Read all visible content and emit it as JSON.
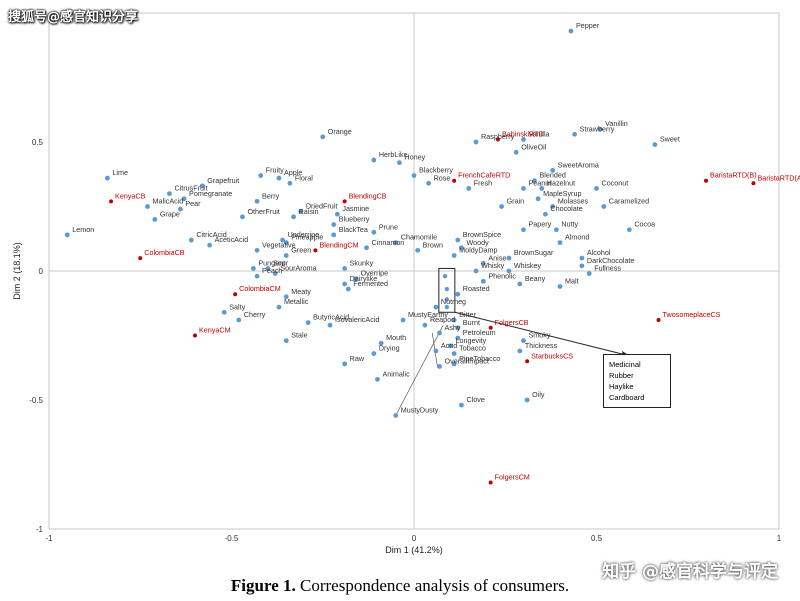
{
  "watermarks": {
    "top": "搜狐号@感官知识分享",
    "bottom": "知乎 @感官科学与评定"
  },
  "caption": {
    "label": "Figure 1.",
    "text": "Correspondence analysis of consumers."
  },
  "box_terms": [
    "Medicinal",
    "Rubber",
    "Haylike",
    "Cardboard"
  ],
  "chart_data": {
    "type": "scatter",
    "xlabel": "Dim 1 (41.2%)",
    "ylabel": "Dim 2 (18.1%)",
    "xlim": [
      -1,
      1
    ],
    "ylim": [
      -1,
      1
    ],
    "xticks": [
      -1,
      -0.5,
      0,
      0.5,
      1
    ],
    "yticks": [
      -1,
      -0.5,
      0,
      0.5
    ],
    "colors": {
      "attribute": "#5b9bd5",
      "sample": "#c00000",
      "sample_text": "#c00000",
      "axis_text": "#333333"
    },
    "attributes": [
      {
        "label": "Pepper",
        "x": 0.43,
        "y": 0.93
      },
      {
        "label": "Vanillin",
        "x": 0.51,
        "y": 0.55
      },
      {
        "label": "Strawberry",
        "x": 0.44,
        "y": 0.53
      },
      {
        "label": "Vanilla",
        "x": 0.3,
        "y": 0.51
      },
      {
        "label": "OliveOil",
        "x": 0.28,
        "y": 0.46
      },
      {
        "label": "Raspberry",
        "x": 0.17,
        "y": 0.5
      },
      {
        "label": "Sweet",
        "x": 0.66,
        "y": 0.49
      },
      {
        "label": "SweetAroma",
        "x": 0.38,
        "y": 0.39
      },
      {
        "label": "Blended",
        "x": 0.33,
        "y": 0.35
      },
      {
        "label": "Peanut",
        "x": 0.3,
        "y": 0.32
      },
      {
        "label": "Hazelnut",
        "x": 0.35,
        "y": 0.32
      },
      {
        "label": "Coconut",
        "x": 0.5,
        "y": 0.32
      },
      {
        "label": "MapleSyrup",
        "x": 0.34,
        "y": 0.28
      },
      {
        "label": "Molasses",
        "x": 0.38,
        "y": 0.25
      },
      {
        "label": "Caramelized",
        "x": 0.52,
        "y": 0.25
      },
      {
        "label": "Chocolate",
        "x": 0.36,
        "y": 0.22
      },
      {
        "label": "Cocoa",
        "x": 0.59,
        "y": 0.16
      },
      {
        "label": "Papery",
        "x": 0.3,
        "y": 0.16
      },
      {
        "label": "Nutty",
        "x": 0.39,
        "y": 0.16
      },
      {
        "label": "Almond",
        "x": 0.4,
        "y": 0.11
      },
      {
        "label": "Alcohol",
        "x": 0.46,
        "y": 0.05
      },
      {
        "label": "DarkChocolate",
        "x": 0.46,
        "y": 0.02
      },
      {
        "label": "Fullness",
        "x": 0.48,
        "y": -0.01
      },
      {
        "label": "Grain",
        "x": 0.24,
        "y": 0.25
      },
      {
        "label": "Fresh",
        "x": 0.15,
        "y": 0.32
      },
      {
        "label": "Rose",
        "x": 0.04,
        "y": 0.34
      },
      {
        "label": "Orange",
        "x": -0.25,
        "y": 0.52
      },
      {
        "label": "HerbLike",
        "x": -0.11,
        "y": 0.43
      },
      {
        "label": "Honey",
        "x": -0.04,
        "y": 0.42
      },
      {
        "label": "Blackberry",
        "x": 0,
        "y": 0.37
      },
      {
        "label": "Fruity",
        "x": -0.42,
        "y": 0.37
      },
      {
        "label": "Apple",
        "x": -0.37,
        "y": 0.36
      },
      {
        "label": "Floral",
        "x": -0.34,
        "y": 0.34
      },
      {
        "label": "Grapefruit",
        "x": -0.58,
        "y": 0.33
      },
      {
        "label": "Lime",
        "x": -0.84,
        "y": 0.36
      },
      {
        "label": "CitrusFruit",
        "x": -0.67,
        "y": 0.3
      },
      {
        "label": "Pomegranate",
        "x": -0.63,
        "y": 0.28
      },
      {
        "label": "MalicAcid",
        "x": -0.73,
        "y": 0.25
      },
      {
        "label": "Pear",
        "x": -0.64,
        "y": 0.24
      },
      {
        "label": "Berry",
        "x": -0.43,
        "y": 0.27
      },
      {
        "label": "DriedFruit",
        "x": -0.31,
        "y": 0.23
      },
      {
        "label": "Raisin",
        "x": -0.33,
        "y": 0.21
      },
      {
        "label": "Jasmine",
        "x": -0.21,
        "y": 0.22
      },
      {
        "label": "Blueberry",
        "x": -0.22,
        "y": 0.18
      },
      {
        "label": "OtherFruit",
        "x": -0.47,
        "y": 0.21
      },
      {
        "label": "Grape",
        "x": -0.71,
        "y": 0.2
      },
      {
        "label": "BlackTea",
        "x": -0.22,
        "y": 0.14
      },
      {
        "label": "Prune",
        "x": -0.11,
        "y": 0.15
      },
      {
        "label": "Chamomile",
        "x": -0.05,
        "y": 0.11
      },
      {
        "label": "Brown",
        "x": 0.01,
        "y": 0.08
      },
      {
        "label": "Cinnamon",
        "x": -0.13,
        "y": 0.09
      },
      {
        "label": "Lemon",
        "x": -0.95,
        "y": 0.14
      },
      {
        "label": "CitricAcid",
        "x": -0.61,
        "y": 0.12
      },
      {
        "label": "AceticAcid",
        "x": -0.56,
        "y": 0.1
      },
      {
        "label": "Underripe",
        "x": -0.36,
        "y": 0.12
      },
      {
        "label": "Pineapple",
        "x": -0.35,
        "y": 0.11
      },
      {
        "label": "Vegetative",
        "x": -0.43,
        "y": 0.08
      },
      {
        "label": "Green",
        "x": -0.35,
        "y": 0.06
      },
      {
        "label": "Pungent",
        "x": -0.44,
        "y": 0.01
      },
      {
        "label": "Sour",
        "x": -0.4,
        "y": 0.01
      },
      {
        "label": "SourAroma",
        "x": -0.38,
        "y": -0.01
      },
      {
        "label": "Peach",
        "x": -0.43,
        "y": -0.02
      },
      {
        "label": "Skunky",
        "x": -0.19,
        "y": 0.01
      },
      {
        "label": "Overripe",
        "x": -0.16,
        "y": -0.03
      },
      {
        "label": "Dairylike",
        "x": -0.19,
        "y": -0.05
      },
      {
        "label": "Fermented",
        "x": -0.18,
        "y": -0.07
      },
      {
        "label": "MoldyDamp",
        "x": 0.11,
        "y": 0.06
      },
      {
        "label": "BrownSpice",
        "x": 0.12,
        "y": 0.12
      },
      {
        "label": "Woody",
        "x": 0.13,
        "y": 0.09
      },
      {
        "label": "BrownSugar",
        "x": 0.26,
        "y": 0.05
      },
      {
        "label": "Anise",
        "x": 0.19,
        "y": 0.03
      },
      {
        "label": "Whisky",
        "x": 0.17,
        "y": 0.0
      },
      {
        "label": "Whiskey",
        "x": 0.26,
        "y": 0.0
      },
      {
        "label": "Phenolic",
        "x": 0.19,
        "y": -0.04
      },
      {
        "label": "Roasted",
        "x": 0.12,
        "y": -0.09
      },
      {
        "label": "Beany",
        "x": 0.29,
        "y": -0.05
      },
      {
        "label": "Malt",
        "x": 0.4,
        "y": -0.06
      },
      {
        "label": "Meaty",
        "x": -0.35,
        "y": -0.1
      },
      {
        "label": "Metallic",
        "x": -0.37,
        "y": -0.14
      },
      {
        "label": "Salty",
        "x": -0.52,
        "y": -0.16
      },
      {
        "label": "Cherry",
        "x": -0.48,
        "y": -0.19
      },
      {
        "label": "ButyricAcid",
        "x": -0.29,
        "y": -0.2
      },
      {
        "label": "MustyEarthy",
        "x": -0.03,
        "y": -0.19
      },
      {
        "label": "IsovalericAcid",
        "x": -0.23,
        "y": -0.21
      },
      {
        "label": "Stale",
        "x": -0.35,
        "y": -0.27
      },
      {
        "label": "Bitter",
        "x": 0.11,
        "y": -0.19
      },
      {
        "label": "Nutmeg",
        "x": 0.06,
        "y": -0.14
      },
      {
        "label": "Reapod",
        "x": 0.03,
        "y": -0.21
      },
      {
        "label": "Ashy",
        "x": 0.07,
        "y": -0.24
      },
      {
        "label": "Burnt",
        "x": 0.12,
        "y": -0.22
      },
      {
        "label": "Petroleum",
        "x": 0.12,
        "y": -0.26
      },
      {
        "label": "Longevity",
        "x": 0.1,
        "y": -0.29
      },
      {
        "label": "Acrid",
        "x": 0.06,
        "y": -0.31
      },
      {
        "label": "Tobacco",
        "x": 0.11,
        "y": -0.32
      },
      {
        "label": "Smoky",
        "x": 0.3,
        "y": -0.27
      },
      {
        "label": "Thickness",
        "x": 0.29,
        "y": -0.31
      },
      {
        "label": "PipeTobacco",
        "x": 0.11,
        "y": -0.36
      },
      {
        "label": "Mouth",
        "x": -0.09,
        "y": -0.28
      },
      {
        "label": "Drying",
        "x": -0.11,
        "y": -0.32
      },
      {
        "label": "Raw",
        "x": -0.19,
        "y": -0.36
      },
      {
        "label": "Animalic",
        "x": -0.1,
        "y": -0.42
      },
      {
        "label": "OverallImpact",
        "x": 0.07,
        "y": -0.37
      },
      {
        "label": "Clove",
        "x": 0.13,
        "y": -0.52
      },
      {
        "label": "Oily",
        "x": 0.31,
        "y": -0.5
      },
      {
        "label": "MustyDusty",
        "x": -0.05,
        "y": -0.56
      }
    ],
    "samples": [
      {
        "label": "BabinskiRTD",
        "x": 0.23,
        "y": 0.51
      },
      {
        "label": "FrenchCafeRTD",
        "x": 0.11,
        "y": 0.35
      },
      {
        "label": "BaristaRTD(B)",
        "x": 0.8,
        "y": 0.35
      },
      {
        "label": "BaristaRTD(A)",
        "x": 0.93,
        "y": 0.34
      },
      {
        "label": "KenyaCB",
        "x": -0.83,
        "y": 0.27
      },
      {
        "label": "BlendingCB",
        "x": -0.19,
        "y": 0.27
      },
      {
        "label": "ColombiaCB",
        "x": -0.75,
        "y": 0.05
      },
      {
        "label": "BlendingCM",
        "x": -0.27,
        "y": 0.08
      },
      {
        "label": "ColombiaCM",
        "x": -0.49,
        "y": -0.09
      },
      {
        "label": "KenyaCM",
        "x": -0.6,
        "y": -0.25
      },
      {
        "label": "FolgersCB",
        "x": 0.21,
        "y": -0.22
      },
      {
        "label": "TwosomeplaceCS",
        "x": 0.67,
        "y": -0.19
      },
      {
        "label": "StarbucksCS",
        "x": 0.31,
        "y": -0.35
      },
      {
        "label": "FolgersCM",
        "x": 0.21,
        "y": -0.82
      }
    ]
  }
}
